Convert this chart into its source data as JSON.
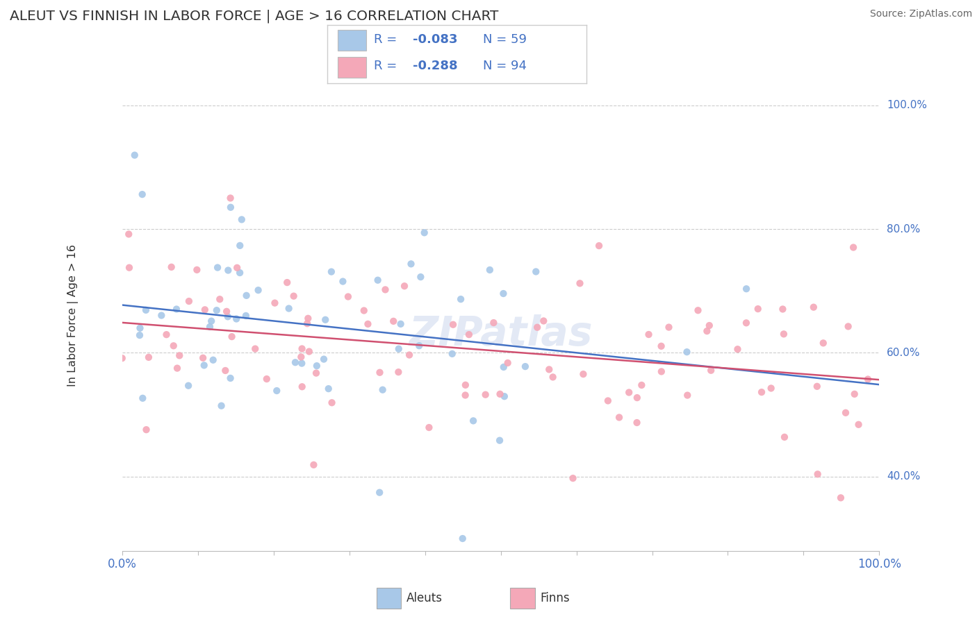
{
  "title": "ALEUT VS FINNISH IN LABOR FORCE | AGE > 16 CORRELATION CHART",
  "source": "Source: ZipAtlas.com",
  "ylabel": "In Labor Force | Age > 16",
  "aleut_color": "#a8c8e8",
  "finn_color": "#f4a8b8",
  "aleut_line_color": "#4472c4",
  "finn_line_color": "#d05070",
  "aleut_R": -0.083,
  "aleut_N": 59,
  "finn_R": -0.288,
  "finn_N": 94,
  "R_value_color": "#4472c4",
  "label_color": "#4472c4",
  "watermark": "ZIPatlas",
  "background_color": "#ffffff",
  "grid_color": "#cccccc",
  "text_color": "#333333"
}
